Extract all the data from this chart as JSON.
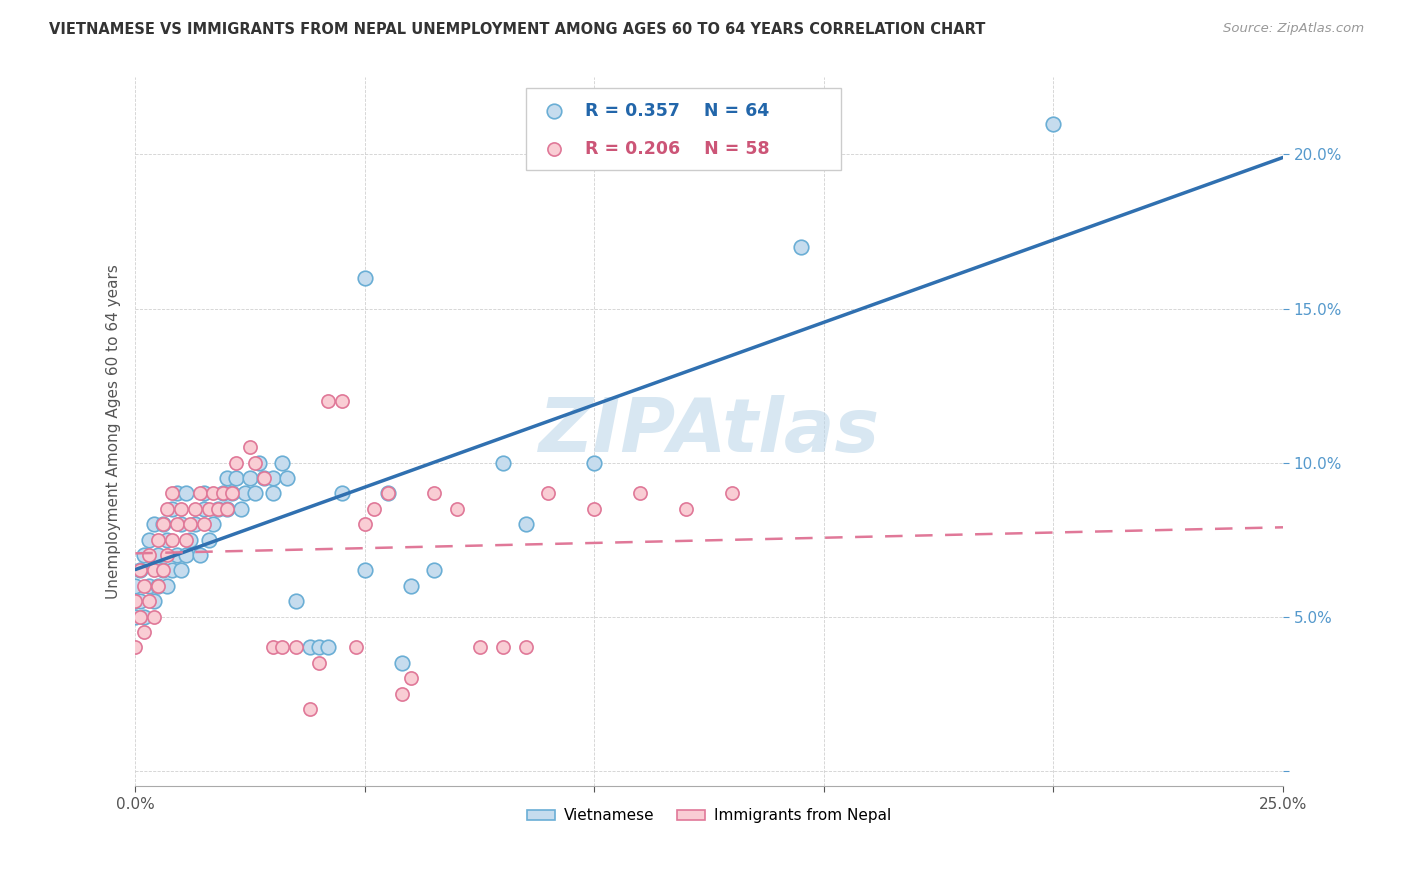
{
  "title": "VIETNAMESE VS IMMIGRANTS FROM NEPAL UNEMPLOYMENT AMONG AGES 60 TO 64 YEARS CORRELATION CHART",
  "source": "Source: ZipAtlas.com",
  "ylabel": "Unemployment Among Ages 60 to 64 years",
  "xlim": [
    0.0,
    0.25
  ],
  "ylim": [
    -0.005,
    0.225
  ],
  "xtick_positions": [
    0.0,
    0.05,
    0.1,
    0.15,
    0.2,
    0.25
  ],
  "xtick_labels": [
    "0.0%",
    "",
    "",
    "",
    "",
    "25.0%"
  ],
  "ytick_positions": [
    0.0,
    0.05,
    0.1,
    0.15,
    0.2
  ],
  "ytick_labels": [
    "",
    "5.0%",
    "10.0%",
    "15.0%",
    "20.0%"
  ],
  "watermark": "ZIPAtlas",
  "R1": "0.357",
  "N1": "64",
  "R2": "0.206",
  "N2": "58",
  "legend_label1": "Vietnamese",
  "legend_label2": "Immigrants from Nepal",
  "blue_face": "#c6dcee",
  "blue_edge": "#6aaed5",
  "pink_face": "#f9cdd4",
  "pink_edge": "#e07898",
  "blue_line": "#3070b0",
  "pink_line": "#e07898",
  "viet_x": [
    0.0,
    0.0,
    0.0,
    0.001,
    0.001,
    0.002,
    0.002,
    0.003,
    0.003,
    0.004,
    0.004,
    0.005,
    0.005,
    0.006,
    0.006,
    0.007,
    0.007,
    0.008,
    0.008,
    0.009,
    0.009,
    0.01,
    0.01,
    0.011,
    0.011,
    0.012,
    0.013,
    0.014,
    0.015,
    0.015,
    0.016,
    0.017,
    0.018,
    0.019,
    0.02,
    0.02,
    0.021,
    0.022,
    0.023,
    0.024,
    0.025,
    0.026,
    0.027,
    0.028,
    0.03,
    0.03,
    0.032,
    0.033,
    0.035,
    0.038,
    0.04,
    0.042,
    0.045,
    0.05,
    0.05,
    0.055,
    0.058,
    0.06,
    0.065,
    0.08,
    0.085,
    0.1,
    0.145,
    0.2
  ],
  "viet_y": [
    0.05,
    0.055,
    0.06,
    0.055,
    0.065,
    0.05,
    0.07,
    0.06,
    0.075,
    0.055,
    0.08,
    0.06,
    0.07,
    0.065,
    0.08,
    0.06,
    0.075,
    0.065,
    0.085,
    0.07,
    0.09,
    0.065,
    0.08,
    0.07,
    0.09,
    0.075,
    0.08,
    0.07,
    0.09,
    0.085,
    0.075,
    0.08,
    0.085,
    0.09,
    0.085,
    0.095,
    0.09,
    0.095,
    0.085,
    0.09,
    0.095,
    0.09,
    0.1,
    0.095,
    0.09,
    0.095,
    0.1,
    0.095,
    0.055,
    0.04,
    0.04,
    0.04,
    0.09,
    0.065,
    0.16,
    0.09,
    0.035,
    0.06,
    0.065,
    0.1,
    0.08,
    0.1,
    0.17,
    0.21
  ],
  "nepal_x": [
    0.0,
    0.0,
    0.001,
    0.001,
    0.002,
    0.002,
    0.003,
    0.003,
    0.004,
    0.004,
    0.005,
    0.005,
    0.006,
    0.006,
    0.007,
    0.007,
    0.008,
    0.008,
    0.009,
    0.01,
    0.011,
    0.012,
    0.013,
    0.014,
    0.015,
    0.016,
    0.017,
    0.018,
    0.019,
    0.02,
    0.021,
    0.022,
    0.025,
    0.026,
    0.028,
    0.03,
    0.032,
    0.035,
    0.038,
    0.04,
    0.042,
    0.045,
    0.048,
    0.05,
    0.052,
    0.055,
    0.058,
    0.06,
    0.065,
    0.07,
    0.075,
    0.08,
    0.085,
    0.09,
    0.1,
    0.11,
    0.12,
    0.13
  ],
  "nepal_y": [
    0.04,
    0.055,
    0.05,
    0.065,
    0.045,
    0.06,
    0.055,
    0.07,
    0.05,
    0.065,
    0.06,
    0.075,
    0.065,
    0.08,
    0.07,
    0.085,
    0.075,
    0.09,
    0.08,
    0.085,
    0.075,
    0.08,
    0.085,
    0.09,
    0.08,
    0.085,
    0.09,
    0.085,
    0.09,
    0.085,
    0.09,
    0.1,
    0.105,
    0.1,
    0.095,
    0.04,
    0.04,
    0.04,
    0.02,
    0.035,
    0.12,
    0.12,
    0.04,
    0.08,
    0.085,
    0.09,
    0.025,
    0.03,
    0.09,
    0.085,
    0.04,
    0.04,
    0.04,
    0.09,
    0.085,
    0.09,
    0.085,
    0.09
  ]
}
